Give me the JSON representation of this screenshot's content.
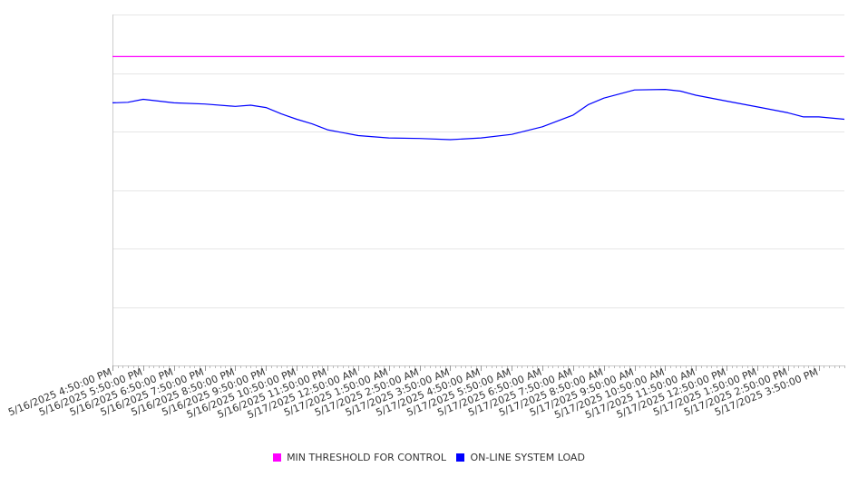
{
  "chart_data": {
    "type": "line",
    "title": "",
    "xlabel": "",
    "ylabel": "",
    "ylim": [
      0,
      3000
    ],
    "yticks": [
      0,
      500,
      1000,
      1500,
      2000,
      2500,
      3000
    ],
    "show_y_tick_labels": false,
    "grid": true,
    "legend_position": "bottom",
    "x_start": "5/16/2025 4:50:00 PM",
    "x_end": "5/17/2025 4:40:00 PM",
    "x_tick_labels": [
      "5/16/2025 4:50:00 PM",
      "5/16/2025 5:50:00 PM",
      "5/16/2025 6:50:00 PM",
      "5/16/2025 7:50:00 PM",
      "5/16/2025 8:50:00 PM",
      "5/16/2025 9:50:00 PM",
      "5/16/2025 10:50:00 PM",
      "5/16/2025 11:50:00 PM",
      "5/17/2025 12:50:00 AM",
      "5/17/2025 1:50:00 AM",
      "5/17/2025 2:50:00 AM",
      "5/17/2025 3:50:00 AM",
      "5/17/2025 4:50:00 AM",
      "5/17/2025 5:50:00 AM",
      "5/17/2025 6:50:00 AM",
      "5/17/2025 7:50:00 AM",
      "5/17/2025 8:50:00 AM",
      "5/17/2025 9:50:00 AM",
      "5/17/2025 10:50:00 AM",
      "5/17/2025 11:50:00 AM",
      "5/17/2025 12:50:00 PM",
      "5/17/2025 1:50:00 PM",
      "5/17/2025 2:50:00 PM",
      "5/17/2025 3:50:00 PM"
    ],
    "series": [
      {
        "name": "MIN THRESHOLD FOR CONTROL",
        "color": "#ff00ff",
        "x": [
          "5/16/2025 4:50:00 PM",
          "5/17/2025 4:40:00 PM"
        ],
        "values": [
          2640,
          2640
        ]
      },
      {
        "name": "ON-LINE SYSTEM LOAD",
        "color": "#0000ff",
        "x": [
          "5/16/2025 4:50:00 PM",
          "5/16/2025 5:20:00 PM",
          "5/16/2025 5:50:00 PM",
          "5/16/2025 6:50:00 PM",
          "5/16/2025 7:50:00 PM",
          "5/16/2025 8:50:00 PM",
          "5/16/2025 9:20:00 PM",
          "5/16/2025 9:50:00 PM",
          "5/16/2025 10:20:00 PM",
          "5/16/2025 10:50:00 PM",
          "5/16/2025 11:20:00 PM",
          "5/16/2025 11:50:00 PM",
          "5/17/2025 12:50:00 AM",
          "5/17/2025 1:50:00 AM",
          "5/17/2025 2:50:00 AM",
          "5/17/2025 3:50:00 AM",
          "5/17/2025 4:50:00 AM",
          "5/17/2025 5:50:00 AM",
          "5/17/2025 6:50:00 AM",
          "5/17/2025 7:50:00 AM",
          "5/17/2025 8:20:00 AM",
          "5/17/2025 8:50:00 AM",
          "5/17/2025 9:50:00 AM",
          "5/17/2025 10:50:00 AM",
          "5/17/2025 11:20:00 AM",
          "5/17/2025 11:50:00 AM",
          "5/17/2025 12:50:00 PM",
          "5/17/2025 1:50:00 PM",
          "5/17/2025 2:50:00 PM",
          "5/17/2025 3:20:00 PM",
          "5/17/2025 3:50:00 PM",
          "5/17/2025 4:40:00 PM"
        ],
        "values": [
          2245,
          2250,
          2275,
          2245,
          2235,
          2215,
          2225,
          2205,
          2150,
          2105,
          2065,
          2015,
          1965,
          1945,
          1940,
          1930,
          1945,
          1975,
          2040,
          2140,
          2230,
          2285,
          2355,
          2360,
          2345,
          2310,
          2260,
          2210,
          2160,
          2125,
          2125,
          2105
        ]
      }
    ]
  }
}
